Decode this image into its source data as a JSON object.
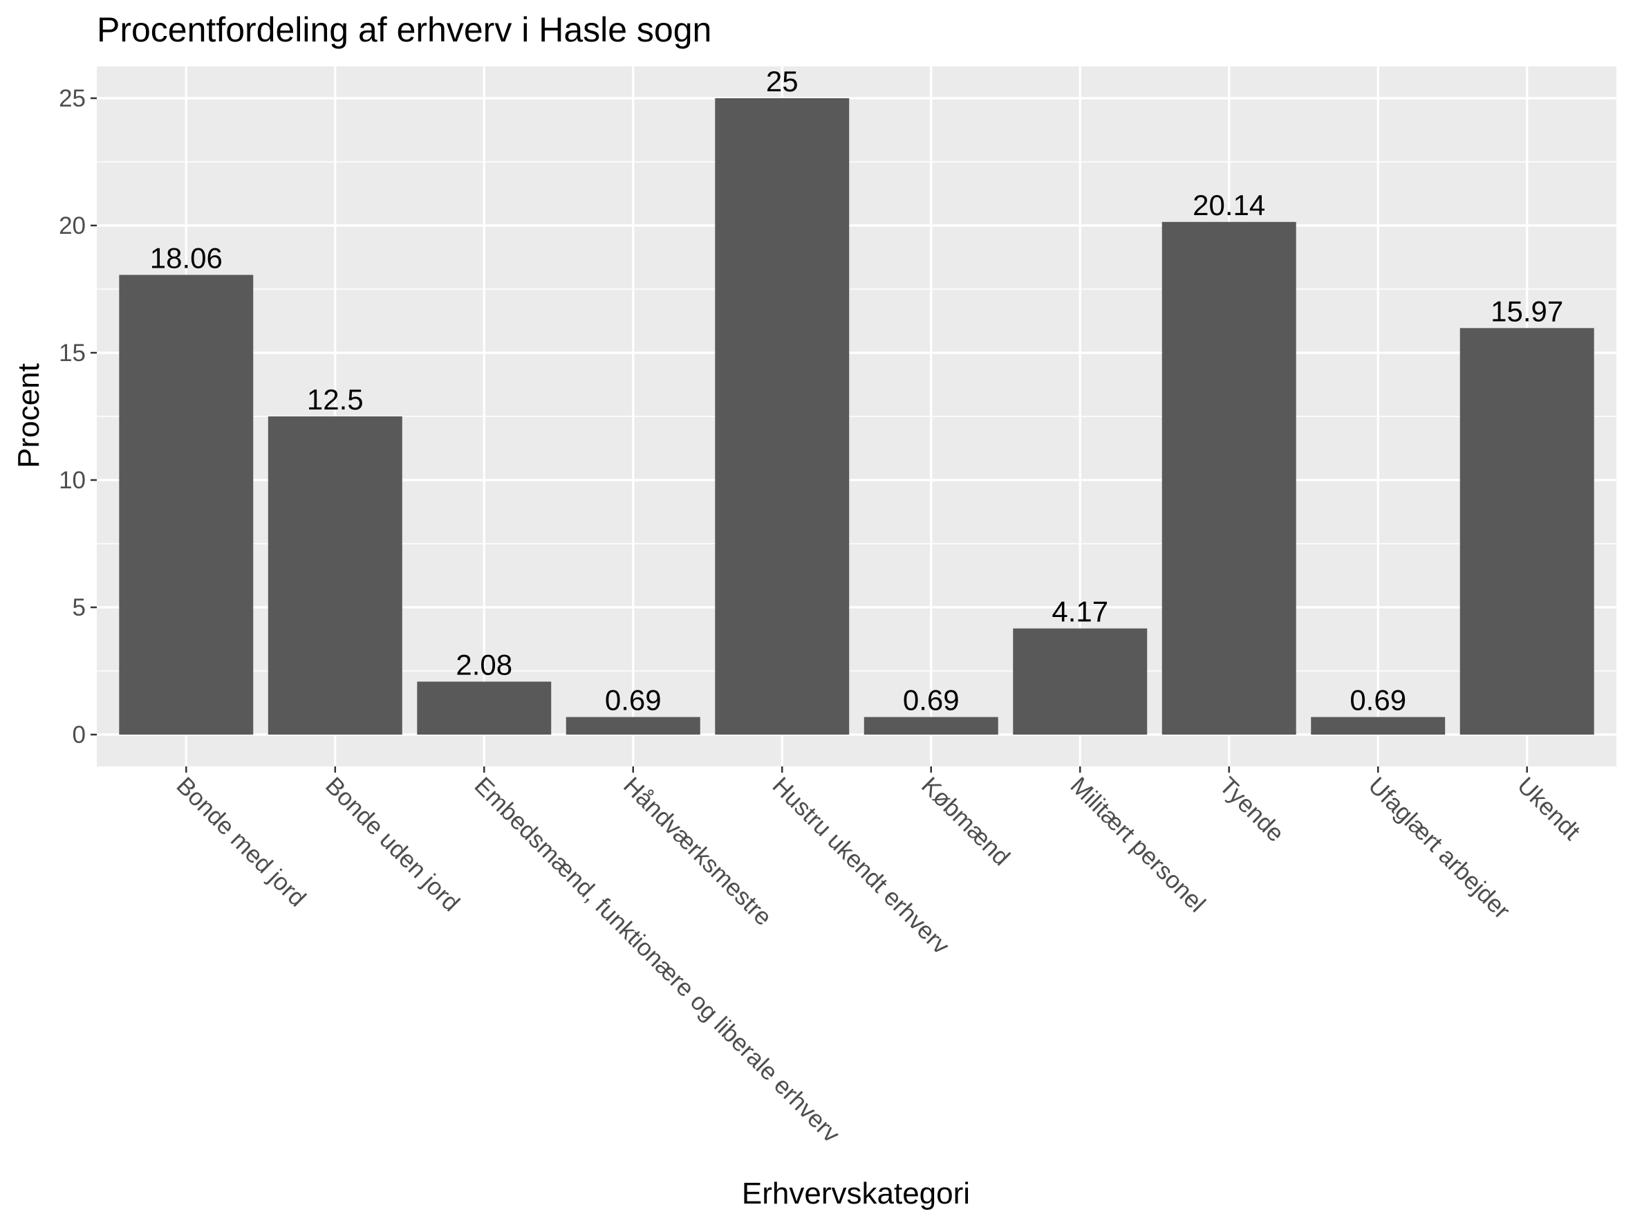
{
  "chart_data": {
    "type": "bar",
    "title": "Procentfordeling af erhverv i Hasle sogn",
    "xlabel": "Erhvervskategori",
    "ylabel": "Procent",
    "categories": [
      "Bonde med jord",
      "Bonde uden jord",
      "Embedsmænd, funktionære og liberale erhverv",
      "Håndværksmestre",
      "Hustru ukendt erhverv",
      "Købmænd",
      "Militært personel",
      "Tyende",
      "Ufaglært arbejder",
      "Ukendt"
    ],
    "values": [
      18.06,
      12.5,
      2.08,
      0.69,
      25,
      0.69,
      4.17,
      20.14,
      0.69,
      15.97
    ],
    "value_labels": [
      "18.06",
      "12.5",
      "2.08",
      "0.69",
      "25",
      "0.69",
      "4.17",
      "20.14",
      "0.69",
      "15.97"
    ],
    "ylim": [
      -1.25,
      26.25
    ],
    "yticks": [
      0,
      5,
      10,
      15,
      20,
      25
    ],
    "ytick_labels": [
      "0",
      "5",
      "10",
      "15",
      "20",
      "25"
    ],
    "grid": true,
    "legend": "none",
    "colors": {
      "bar": "#595959",
      "panel": "#ebebeb",
      "grid": "#ffffff",
      "tick_text": "#4d4d4d",
      "text": "#000000"
    }
  }
}
